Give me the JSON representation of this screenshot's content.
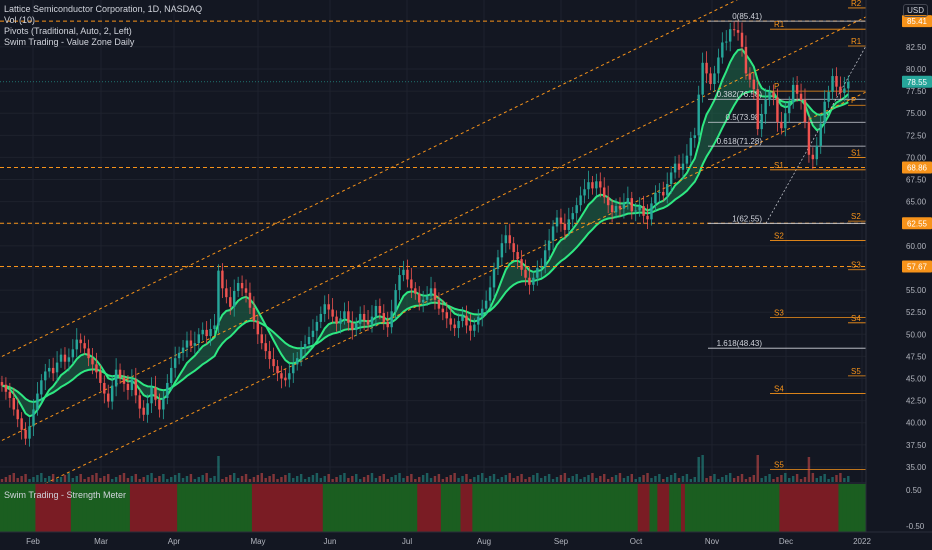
{
  "legend": {
    "title": "Lattice Semiconductor Corporation, 1D, NASDAQ",
    "vol": "Vol (10)",
    "pivots": "Pivots (Traditional, Auto, 2, Left)",
    "swim": "Swim Trading - Value Zone Daily"
  },
  "currency": "USD",
  "pane2_title": "Swim Trading - Strength Meter",
  "colors": {
    "background": "#131722",
    "up": "#26a69a",
    "down": "#ef5350",
    "zone_line": "#2ee882",
    "zone_fill": "#1f6b4a",
    "channel": "#f7931a",
    "strength_up": "#1b5e20",
    "strength_down": "#7a1c24"
  },
  "chart_data": {
    "type": "candlestick",
    "x_labels": [
      "Feb",
      "Mar",
      "Apr",
      "May",
      "Jun",
      "Jul",
      "Aug",
      "Sep",
      "Oct",
      "Nov",
      "Dec",
      "2022"
    ],
    "y_ticks": [
      35.0,
      37.5,
      40.0,
      42.5,
      45.0,
      47.5,
      50.0,
      52.5,
      55.0,
      57.5,
      60.0,
      62.5,
      65.0,
      67.5,
      70.0,
      72.5,
      75.0,
      77.5,
      80.0,
      82.5
    ],
    "ylim": [
      33.3,
      87.8
    ],
    "price_tags": [
      {
        "label": "85.41",
        "value": 85.41,
        "color": "#f7931a"
      },
      {
        "label": "78.55",
        "value": 78.55,
        "color": "#26a69a"
      },
      {
        "label": "68.86",
        "value": 68.86,
        "color": "#f7931a"
      },
      {
        "label": "62.55",
        "value": 62.55,
        "color": "#f7931a"
      },
      {
        "label": "57.67",
        "value": 57.67,
        "color": "#f7931a"
      }
    ],
    "fib_levels": [
      {
        "label": "0(85.41)",
        "value": 85.41
      },
      {
        "label": "0.382(76.58)",
        "value": 76.58
      },
      {
        "label": "0.5(73.98)",
        "value": 73.98
      },
      {
        "label": "0.618(71.28)",
        "value": 71.28
      },
      {
        "label": "1(62.55)",
        "value": 62.55
      },
      {
        "label": "1.618(48.43)",
        "value": 48.43
      }
    ],
    "pivots_left": [
      {
        "label": "R1",
        "value": 84.5
      },
      {
        "label": "P",
        "value": 77.5
      },
      {
        "label": "S1",
        "value": 68.6
      },
      {
        "label": "S2",
        "value": 60.6
      },
      {
        "label": "S3",
        "value": 51.9
      },
      {
        "label": "S4",
        "value": 43.3
      },
      {
        "label": "S5",
        "value": 34.7
      }
    ],
    "pivots_right": [
      {
        "label": "R2",
        "value": 86.9
      },
      {
        "label": "R1",
        "value": 82.6
      },
      {
        "label": "P",
        "value": 75.9
      },
      {
        "label": "S1",
        "value": 70.0
      },
      {
        "label": "S2",
        "value": 62.8
      },
      {
        "label": "S3",
        "value": 57.3
      },
      {
        "label": "S4",
        "value": 51.3
      },
      {
        "label": "S5",
        "value": 45.3
      }
    ],
    "close": [
      44.2,
      43.5,
      42.8,
      41.5,
      40.4,
      39.2,
      38.2,
      39.6,
      41.5,
      43.3,
      44.8,
      45.8,
      46.2,
      45.6,
      46.8,
      47.7,
      46.9,
      47.4,
      48.3,
      49.4,
      49.0,
      48.4,
      47.3,
      46.6,
      45.7,
      44.5,
      43.3,
      42.4,
      44.2,
      46.0,
      45.1,
      44.4,
      43.7,
      44.9,
      43.1,
      41.6,
      40.9,
      42.2,
      44.0,
      42.6,
      41.5,
      42.8,
      44.5,
      46.2,
      47.3,
      47.9,
      48.5,
      49.3,
      48.7,
      49.0,
      50.0,
      50.5,
      49.8,
      50.6,
      51.0,
      57.2,
      55.2,
      54.2,
      53.1,
      54.9,
      55.8,
      55.2,
      54.7,
      53.0,
      51.5,
      50.0,
      49.0,
      48.1,
      47.2,
      46.4,
      45.6,
      45.0,
      44.8,
      45.6,
      46.6,
      47.3,
      48.4,
      48.9,
      49.7,
      50.4,
      51.4,
      52.3,
      53.4,
      52.8,
      52.0,
      51.2,
      51.8,
      52.6,
      51.3,
      50.5,
      51.2,
      52.3,
      51.6,
      51.1,
      52.0,
      53.2,
      52.4,
      51.4,
      50.8,
      52.6,
      55.0,
      56.7,
      57.3,
      56.2,
      55.2,
      54.6,
      53.6,
      53.9,
      54.3,
      55.2,
      53.9,
      52.9,
      52.5,
      51.8,
      51.1,
      50.7,
      51.5,
      52.1,
      51.0,
      50.4,
      51.1,
      52.0,
      52.9,
      53.8,
      55.3,
      57.4,
      58.7,
      60.3,
      61.2,
      60.3,
      59.3,
      58.5,
      57.3,
      56.4,
      55.6,
      56.4,
      57.5,
      57.6,
      59.5,
      60.6,
      62.2,
      63.2,
      62.5,
      61.8,
      63.0,
      63.7,
      64.6,
      65.7,
      66.4,
      67.2,
      66.5,
      67.3,
      66.6,
      65.5,
      64.6,
      63.8,
      64.5,
      64.2,
      64.8,
      65.4,
      63.9,
      64.0,
      64.5,
      63.4,
      63.0,
      64.8,
      66.0,
      66.1,
      65.7,
      67.0,
      68.3,
      69.3,
      68.6,
      69.3,
      70.2,
      72.2,
      72.5,
      77.1,
      80.7,
      79.5,
      78.3,
      79.5,
      81.3,
      83.0,
      83.1,
      84.5,
      84.4,
      84.1,
      82.5,
      79.5,
      78.8,
      77.7,
      73.2,
      74.9,
      76.5,
      77.4,
      76.8,
      74.0,
      73.3,
      75.0,
      76.2,
      78.2,
      77.2,
      76.5,
      74.0,
      70.3,
      69.8,
      71.3,
      73.8,
      76.3,
      77.4,
      79.2,
      78.0,
      77.3,
      77.8,
      78.55
    ],
    "open": [
      44.6,
      44.3,
      43.5,
      42.8,
      41.5,
      40.5,
      39.2,
      38.2,
      39.6,
      41.5,
      43.2,
      44.8,
      45.8,
      46.2,
      45.7,
      46.9,
      47.7,
      46.9,
      47.4,
      48.3,
      49.4,
      49.0,
      48.4,
      47.3,
      46.6,
      45.8,
      44.5,
      43.3,
      42.4,
      44.1,
      46.0,
      45.1,
      44.4,
      43.7,
      44.9,
      43.1,
      41.7,
      40.9,
      42.2,
      44.0,
      42.6,
      41.5,
      42.8,
      44.5,
      46.2,
      47.3,
      47.9,
      48.5,
      49.3,
      48.7,
      49.0,
      50.0,
      50.5,
      49.8,
      50.6,
      51.0,
      57.2,
      55.2,
      54.2,
      53.1,
      54.9,
      55.8,
      55.2,
      54.7,
      53.0,
      51.5,
      50.0,
      49.0,
      48.1,
      47.2,
      46.4,
      45.6,
      45.1,
      44.9,
      45.6,
      46.6,
      47.3,
      48.4,
      48.9,
      49.7,
      50.4,
      51.4,
      52.3,
      53.4,
      52.8,
      52.0,
      51.2,
      51.8,
      52.6,
      51.3,
      50.5,
      51.2,
      52.3,
      51.6,
      51.1,
      52.0,
      53.2,
      52.4,
      51.4,
      50.8,
      52.6,
      55.0,
      56.7,
      57.3,
      56.2,
      55.2,
      54.6,
      53.6,
      53.9,
      54.3,
      55.2,
      53.9,
      52.9,
      52.5,
      51.8,
      51.1,
      50.7,
      51.5,
      52.1,
      51.0,
      50.4,
      51.1,
      52.0,
      52.9,
      53.8,
      55.3,
      57.4,
      58.7,
      60.3,
      61.2,
      60.3,
      59.3,
      58.5,
      57.3,
      56.4,
      55.6,
      56.4,
      57.5,
      57.6,
      59.5,
      60.6,
      62.2,
      63.2,
      62.5,
      61.8,
      63.0,
      63.7,
      64.6,
      65.7,
      66.4,
      67.2,
      66.5,
      67.3,
      66.6,
      65.5,
      64.6,
      63.8,
      64.5,
      64.2,
      64.8,
      65.4,
      63.9,
      64.0,
      64.5,
      63.4,
      63.0,
      64.8,
      66.0,
      66.1,
      65.7,
      67.0,
      68.3,
      69.3,
      68.6,
      69.3,
      70.2,
      72.2,
      72.5,
      77.1,
      80.7,
      79.5,
      78.3,
      79.5,
      81.3,
      83.0,
      83.1,
      84.5,
      84.4,
      84.1,
      82.5,
      79.5,
      78.8,
      77.7,
      73.2,
      74.9,
      76.5,
      77.4,
      76.8,
      74.0,
      73.3,
      75.0,
      76.2,
      78.2,
      77.2,
      76.5,
      74.0,
      70.3,
      69.8,
      71.3,
      73.8,
      76.3,
      77.4,
      79.2,
      78.0,
      77.3,
      77.8
    ],
    "strength": [
      "up",
      "up",
      "up",
      "up",
      "up",
      "up",
      "up",
      "up",
      "up",
      "down",
      "down",
      "down",
      "down",
      "down",
      "down",
      "down",
      "down",
      "down",
      "up",
      "up",
      "up",
      "up",
      "up",
      "up",
      "up",
      "up",
      "up",
      "up",
      "up",
      "up",
      "up",
      "up",
      "up",
      "down",
      "down",
      "down",
      "down",
      "down",
      "down",
      "down",
      "down",
      "down",
      "down",
      "down",
      "down",
      "up",
      "up",
      "up",
      "up",
      "up",
      "up",
      "up",
      "up",
      "up",
      "up",
      "up",
      "up",
      "up",
      "up",
      "up",
      "up",
      "up",
      "up",
      "up",
      "down",
      "down",
      "down",
      "down",
      "down",
      "down",
      "down",
      "down",
      "down",
      "down",
      "down",
      "down",
      "down",
      "down",
      "down",
      "down",
      "down",
      "down",
      "up",
      "up",
      "up",
      "up",
      "up",
      "up",
      "up",
      "up",
      "up",
      "up",
      "up",
      "up",
      "up",
      "up",
      "up",
      "up",
      "up",
      "up",
      "up",
      "up",
      "up",
      "up",
      "up",
      "up",
      "down",
      "down",
      "down",
      "down",
      "down",
      "down",
      "up",
      "up",
      "up",
      "up",
      "up",
      "down",
      "down",
      "down",
      "up",
      "up",
      "up",
      "up",
      "up",
      "up",
      "up",
      "up",
      "up",
      "up",
      "up",
      "up",
      "up",
      "up",
      "up",
      "up",
      "up",
      "up",
      "up",
      "up",
      "up",
      "up",
      "up",
      "up",
      "up",
      "up",
      "up",
      "up",
      "up",
      "up",
      "up",
      "up",
      "up",
      "up",
      "up",
      "up",
      "up",
      "up",
      "up",
      "up",
      "up",
      "up",
      "down",
      "down",
      "down",
      "up",
      "up",
      "down",
      "down",
      "down",
      "up",
      "up",
      "up",
      "down",
      "up",
      "up",
      "up",
      "up",
      "up",
      "up",
      "up",
      "up",
      "up",
      "up",
      "up",
      "up",
      "up",
      "up",
      "up",
      "up",
      "up",
      "up",
      "up",
      "up",
      "up",
      "up",
      "up",
      "up",
      "down",
      "down",
      "down",
      "down",
      "down",
      "down",
      "down",
      "down",
      "down",
      "down",
      "down",
      "down",
      "down",
      "down",
      "down",
      "up",
      "up",
      "up",
      "up",
      "up",
      "up",
      "up",
      "up",
      "down",
      "up",
      "up"
    ],
    "strength_ticks": [
      "0.50",
      "-0.50"
    ]
  }
}
